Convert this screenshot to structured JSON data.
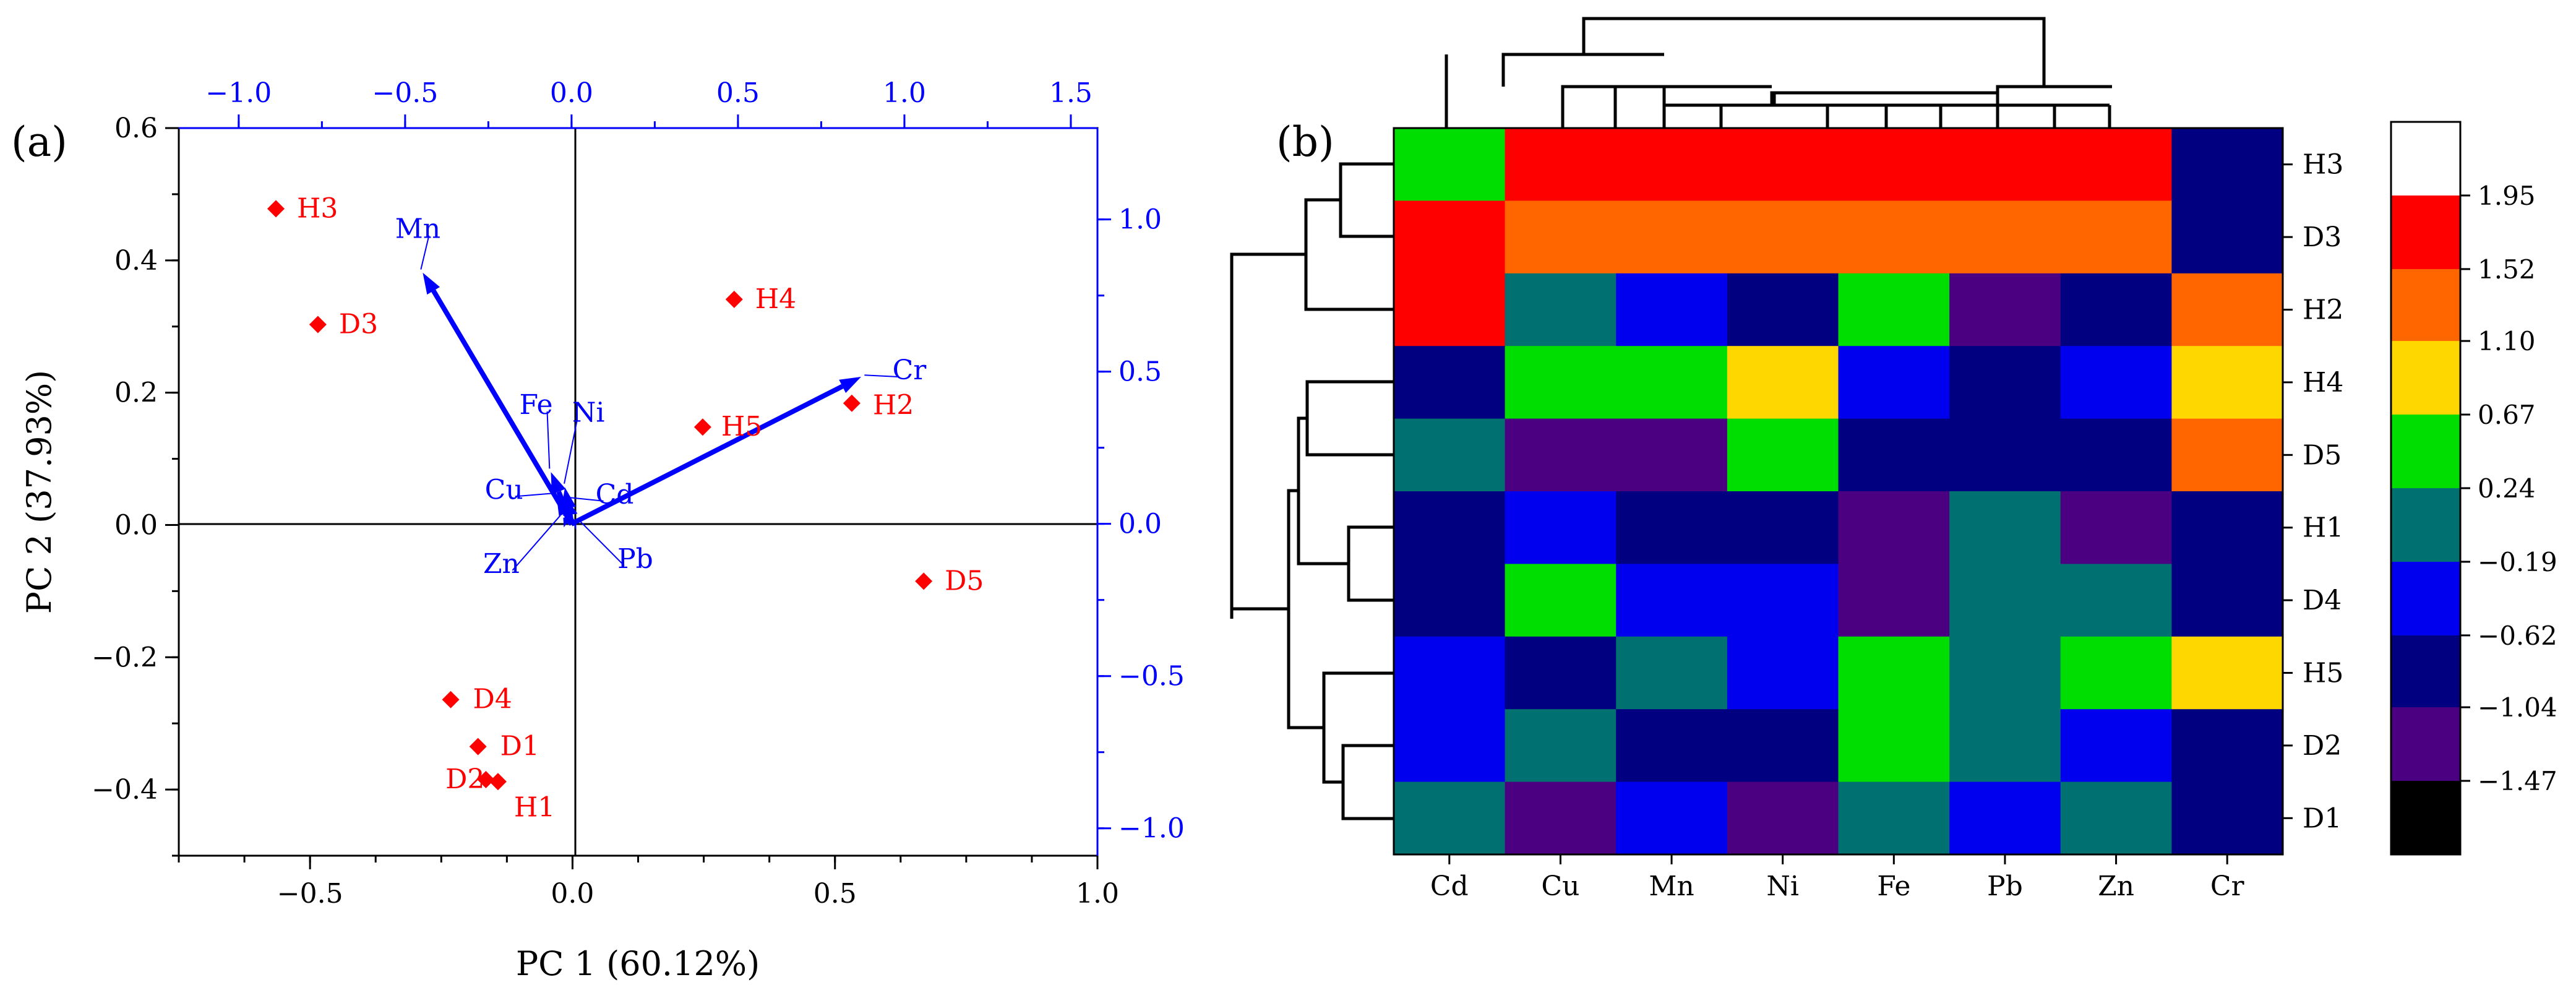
{
  "chart_data": [
    {
      "type": "scatter",
      "subtype": "biplot",
      "panel_label": "(a)",
      "xlabel": "PC 1 (60.12%)",
      "ylabel": "PC 2 (37.93%)",
      "xlim": [
        -0.75,
        1.0
      ],
      "ylim": [
        -0.5,
        0.6
      ],
      "xticks": [
        -0.5,
        0.0,
        0.5,
        1.0
      ],
      "xtick_labels": [
        "−0.5",
        "0.0",
        "0.5",
        "1.0"
      ],
      "yticks": [
        -0.4,
        -0.2,
        0.0,
        0.2,
        0.4,
        0.6
      ],
      "ytick_labels": [
        "−0.4",
        "−0.2",
        "0.0",
        "0.2",
        "0.4",
        "0.6"
      ],
      "top_axis": {
        "lim": [
          -1.18,
          1.58
        ],
        "ticks": [
          -1.0,
          -0.5,
          0.0,
          0.5,
          1.0,
          1.5
        ],
        "tick_labels": [
          "−1.0",
          "−0.5",
          "0.0",
          "0.5",
          "1.0",
          "1.5"
        ]
      },
      "right_axis": {
        "lim": [
          -1.09,
          1.3
        ],
        "ticks": [
          -1.0,
          -0.5,
          0.0,
          0.5,
          1.0
        ],
        "tick_labels": [
          "−1.0",
          "−0.5",
          "0.0",
          "0.5",
          "1.0"
        ]
      },
      "score_color": "#ff0000",
      "loading_color": "#0000ff",
      "scores": [
        {
          "label": "H3",
          "x": -0.565,
          "y": 0.478
        },
        {
          "label": "D3",
          "x": -0.485,
          "y": 0.303
        },
        {
          "label": "H4",
          "x": 0.308,
          "y": 0.341
        },
        {
          "label": "H5",
          "x": 0.248,
          "y": 0.148
        },
        {
          "label": "H2",
          "x": 0.532,
          "y": 0.184
        },
        {
          "label": "D5",
          "x": 0.669,
          "y": -0.085
        },
        {
          "label": "D4",
          "x": -0.232,
          "y": -0.264
        },
        {
          "label": "D1",
          "x": -0.18,
          "y": -0.335
        },
        {
          "label": "D2",
          "x": -0.165,
          "y": -0.385
        },
        {
          "label": "H1",
          "x": -0.142,
          "y": -0.388
        }
      ],
      "loadings": [
        {
          "label": "Mn",
          "x": -0.447,
          "y": 0.825
        },
        {
          "label": "Cr",
          "x": 0.87,
          "y": 0.483
        },
        {
          "label": "Fe",
          "x": -0.062,
          "y": 0.17
        },
        {
          "label": "Ni",
          "x": -0.02,
          "y": 0.12
        },
        {
          "label": "Cu",
          "x": -0.045,
          "y": 0.09
        },
        {
          "label": "Cd",
          "x": -0.01,
          "y": 0.075
        },
        {
          "label": "Zn",
          "x": -0.025,
          "y": 0.02
        },
        {
          "label": "Pb",
          "x": 0.015,
          "y": 0.005
        }
      ]
    },
    {
      "type": "heatmap",
      "panel_label": "(b)",
      "columns": [
        "Cd",
        "Cu",
        "Mn",
        "Ni",
        "Fe",
        "Pb",
        "Zn",
        "Cr"
      ],
      "rows": [
        "H3",
        "D3",
        "H2",
        "H4",
        "D5",
        "H1",
        "D4",
        "H5",
        "D2",
        "D1"
      ],
      "values": [
        [
          0.45,
          1.75,
          1.75,
          1.75,
          1.75,
          1.75,
          1.75,
          -0.83
        ],
        [
          1.75,
          1.31,
          1.31,
          1.31,
          1.31,
          1.31,
          1.31,
          -0.83
        ],
        [
          1.75,
          0.02,
          -0.4,
          -0.83,
          0.45,
          -1.25,
          -0.83,
          1.31
        ],
        [
          -0.83,
          0.45,
          0.45,
          0.88,
          -0.4,
          -0.83,
          -0.4,
          0.88
        ],
        [
          0.02,
          -1.25,
          -1.25,
          0.45,
          -0.83,
          -0.83,
          -0.83,
          1.31
        ],
        [
          -0.83,
          -0.4,
          -0.83,
          -0.83,
          -1.25,
          0.02,
          -1.25,
          -0.83
        ],
        [
          -0.83,
          0.45,
          -0.4,
          -0.4,
          -1.25,
          0.02,
          0.02,
          -0.83
        ],
        [
          -0.4,
          -0.83,
          0.02,
          -0.4,
          0.45,
          0.02,
          0.45,
          0.88
        ],
        [
          -0.4,
          0.02,
          -0.83,
          -0.83,
          0.45,
          0.02,
          -0.4,
          -0.83
        ],
        [
          0.02,
          -1.25,
          -0.4,
          -1.25,
          0.02,
          -0.4,
          0.02,
          -0.83
        ]
      ],
      "colorbar": {
        "breaks": [
          1.95,
          1.52,
          1.1,
          0.67,
          0.24,
          -0.19,
          -0.62,
          -1.04,
          -1.47
        ],
        "break_labels": [
          "1.95",
          "1.52",
          "1.10",
          "0.67",
          "0.24",
          "−0.19",
          "−0.62",
          "−1.04",
          "−1.47"
        ],
        "colors_top_to_bottom": [
          "#ffffff",
          "#ff0000",
          "#ff6600",
          "#ffd700",
          "#00dd00",
          "#007070",
          "#0000ee",
          "#000080",
          "#4b0082",
          "#000000"
        ],
        "range": [
          -1.9,
          2.38
        ]
      },
      "column_dendrogram": "((Cd,(Cu,(Mn,Ni))),((Fe,Pb),(Zn,Cr)))",
      "row_dendrogram": "(((H3,D3),H2),(((H4,D5),(H1,D4)),(H5,(D2,D1))))"
    }
  ]
}
